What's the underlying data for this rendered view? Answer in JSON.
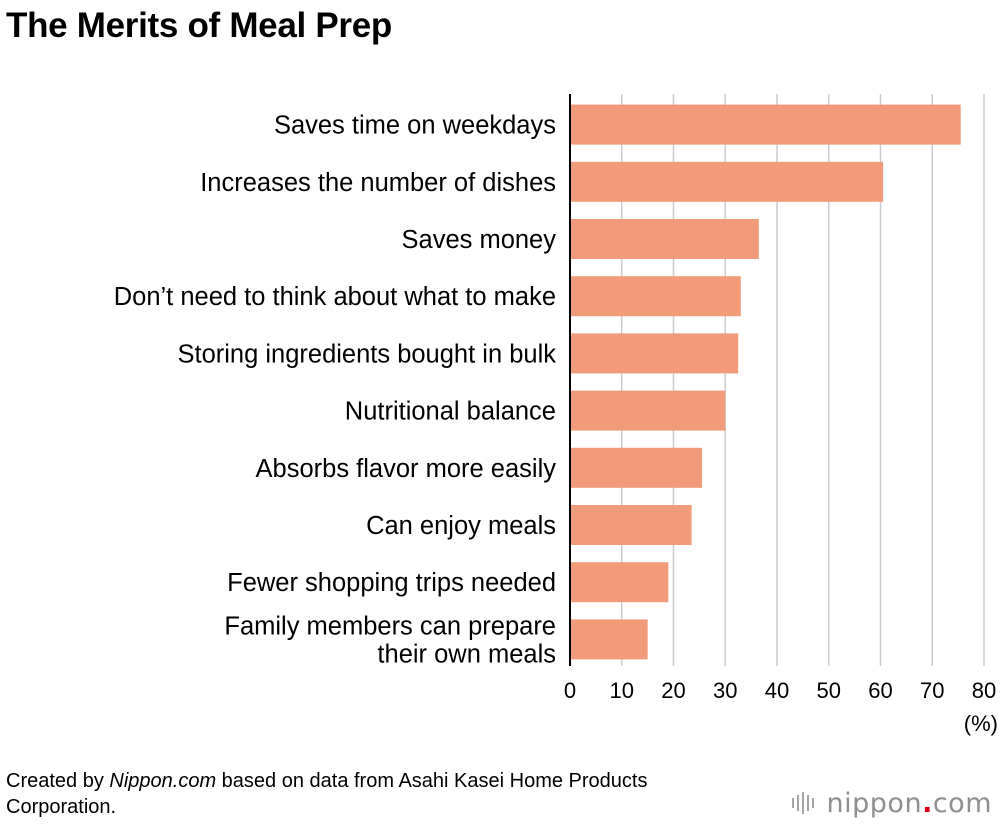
{
  "chart_data": {
    "type": "bar",
    "orientation": "horizontal",
    "title": "The Merits of Meal Prep",
    "categories": [
      [
        "Saves time on weekdays"
      ],
      [
        "Increases the number of dishes"
      ],
      [
        "Saves money"
      ],
      [
        "Don’t need to think about what to make"
      ],
      [
        "Storing ingredients bought in bulk"
      ],
      [
        "Nutritional balance"
      ],
      [
        "Absorbs flavor more easily"
      ],
      [
        "Can enjoy meals"
      ],
      [
        "Fewer shopping trips needed"
      ],
      [
        "Family members can prepare",
        "their own meals"
      ]
    ],
    "values": [
      75.5,
      60.5,
      36.5,
      33,
      32.5,
      30,
      25.5,
      23.5,
      19,
      15
    ],
    "xlim": [
      0,
      80
    ],
    "xticks": [
      "0",
      "10",
      "20",
      "30",
      "40",
      "50",
      "60",
      "70",
      "80"
    ],
    "xunit": "(%)",
    "grid": true,
    "bar_color": "#f29b7a",
    "grid_color": "#cccccc"
  },
  "footer": {
    "prefix": "Created by ",
    "source_site": "Nippon.com",
    "suffix": " based on data from Asahi Kasei Home Products Corporation."
  },
  "logo": {
    "name": "nippon",
    "dot": ".",
    "tld": "com"
  }
}
